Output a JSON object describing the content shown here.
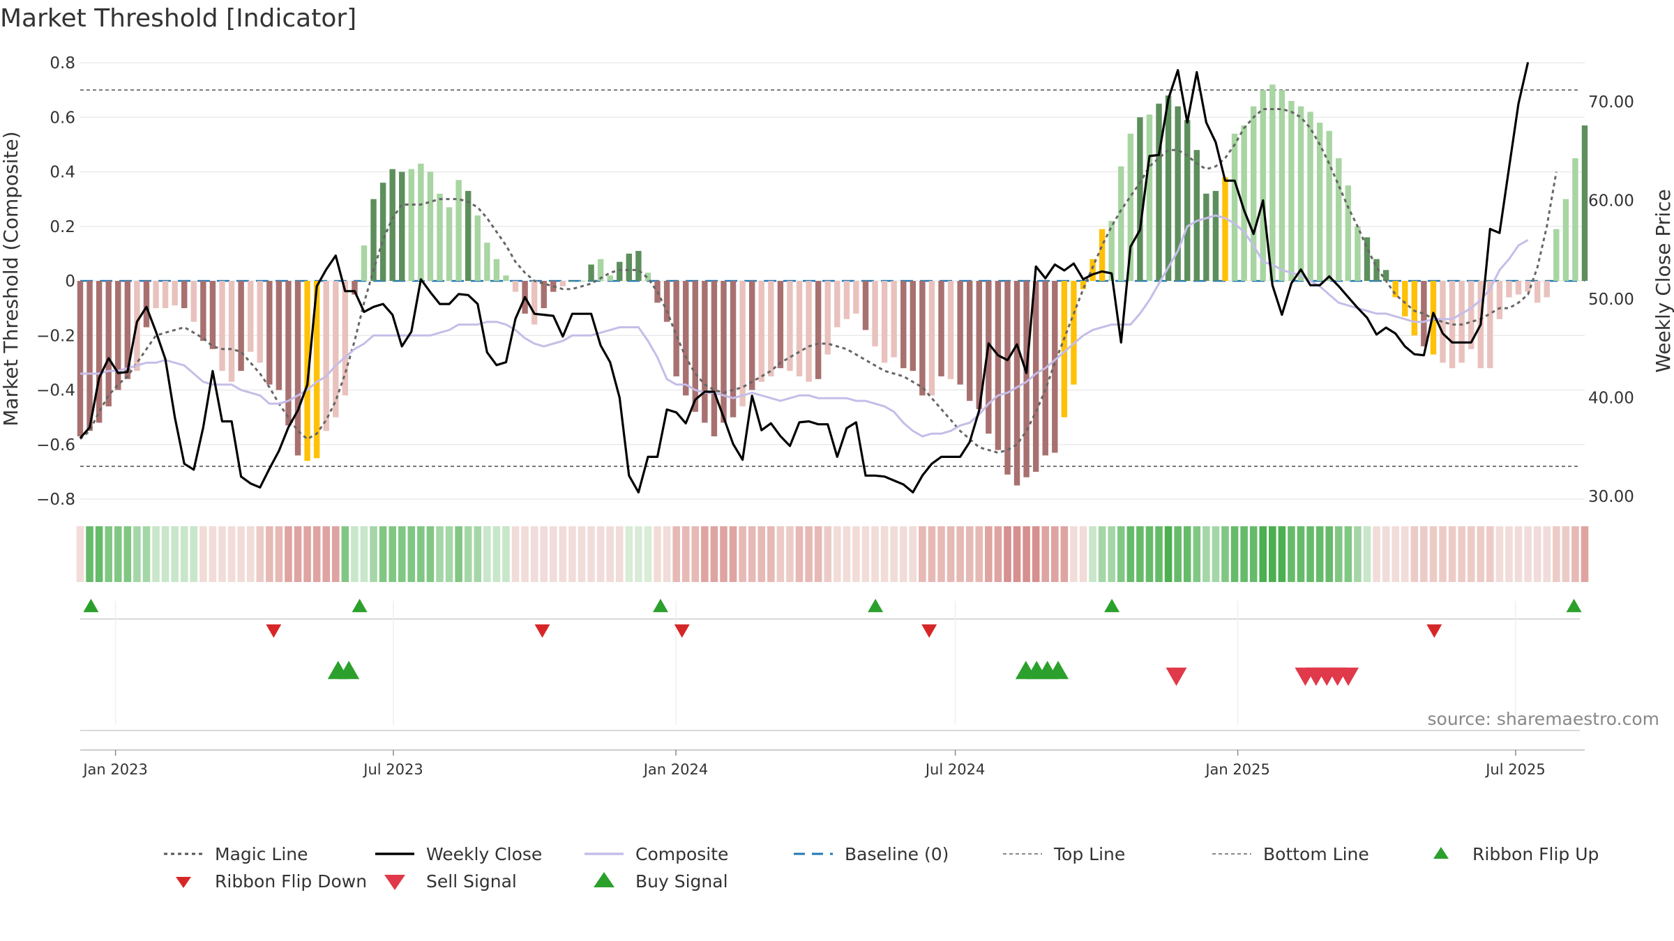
{
  "title": "Market Threshold [Indicator]",
  "source": "source: sharemaestro.com",
  "colors": {
    "green_dark": "#5d8f5d",
    "green_light": "#a8d5a2",
    "red_dark": "#a87170",
    "red_light": "#e9c2bd",
    "gold": "#ffc107",
    "close": "#000000",
    "composite": "#c5bde8",
    "magic": "#666666",
    "baseline": "#1f77b4",
    "buy": "#2ca02c",
    "sell": "#d62728"
  },
  "chart_data": {
    "type": "bar",
    "title": "Market Threshold [Indicator]",
    "ylabel": "Market Threshold (Composite)",
    "ylabel_right": "Weekly Close Price",
    "ylim": [
      -0.8,
      0.8
    ],
    "ylim_right": [
      30,
      72
    ],
    "yticks": [
      {
        "value": 0.8,
        "label": "0.8"
      },
      {
        "value": 0.6,
        "label": "0.6"
      },
      {
        "value": 0.4,
        "label": "0.4"
      },
      {
        "value": 0.2,
        "label": "0.2"
      },
      {
        "value": 0,
        "label": "0"
      },
      {
        "value": -0.2,
        "label": "−0.2"
      },
      {
        "value": -0.4,
        "label": "−0.4"
      },
      {
        "value": -0.6,
        "label": "−0.6"
      },
      {
        "value": -0.8,
        "label": "−0.8"
      }
    ],
    "yticks_right": [
      {
        "value": 70,
        "label": "70.00"
      },
      {
        "value": 60,
        "label": "60.00"
      },
      {
        "value": 50,
        "label": "50.00"
      },
      {
        "value": 40,
        "label": "40.00"
      },
      {
        "value": 30,
        "label": "30.00"
      }
    ],
    "x_start": "2022-12-09",
    "x_end": "2025-08-15",
    "xticks": [
      {
        "date": "2023-01-01",
        "label": "Jan 2023"
      },
      {
        "date": "2023-07-01",
        "label": "Jul 2023"
      },
      {
        "date": "2024-01-01",
        "label": "Jan 2024"
      },
      {
        "date": "2024-07-01",
        "label": "Jul 2024"
      },
      {
        "date": "2025-01-01",
        "label": "Jan 2025"
      },
      {
        "date": "2025-07-01",
        "label": "Jul 2025"
      }
    ],
    "top_line": 0.7,
    "bottom_line": -0.68,
    "baseline": 0,
    "bars": [
      -0.57,
      -0.55,
      -0.52,
      -0.46,
      -0.4,
      -0.36,
      -0.33,
      -0.17,
      -0.1,
      -0.1,
      -0.09,
      -0.1,
      -0.15,
      -0.22,
      -0.25,
      -0.33,
      -0.37,
      -0.33,
      -0.26,
      -0.3,
      -0.38,
      -0.4,
      -0.53,
      -0.64,
      -0.66,
      -0.65,
      -0.55,
      -0.5,
      -0.42,
      -0.05,
      0.13,
      0.3,
      0.36,
      0.41,
      0.4,
      0.41,
      0.43,
      0.4,
      0.32,
      0.27,
      0.37,
      0.33,
      0.24,
      0.14,
      0.08,
      0.02,
      -0.04,
      -0.12,
      -0.16,
      -0.1,
      -0.04,
      -0.02,
      0.0,
      0.0,
      0.06,
      0.08,
      0.02,
      0.07,
      0.1,
      0.11,
      0.03,
      -0.08,
      -0.15,
      -0.35,
      -0.42,
      -0.48,
      -0.52,
      -0.57,
      -0.52,
      -0.5,
      -0.46,
      -0.4,
      -0.37,
      -0.35,
      -0.32,
      -0.33,
      -0.35,
      -0.37,
      -0.36,
      -0.27,
      -0.17,
      -0.14,
      -0.12,
      -0.18,
      -0.24,
      -0.3,
      -0.28,
      -0.32,
      -0.33,
      -0.42,
      -0.42,
      -0.35,
      -0.36,
      -0.38,
      -0.44,
      -0.47,
      -0.56,
      -0.62,
      -0.71,
      -0.75,
      -0.72,
      -0.7,
      -0.64,
      -0.63,
      -0.5,
      -0.38,
      -0.03,
      0.08,
      0.19,
      0.22,
      0.42,
      0.54,
      0.6,
      0.61,
      0.65,
      0.68,
      0.64,
      0.59,
      0.48,
      0.32,
      0.33,
      0.38,
      0.54,
      0.57,
      0.64,
      0.7,
      0.72,
      0.7,
      0.66,
      0.64,
      0.62,
      0.58,
      0.55,
      0.45,
      0.35,
      0.2,
      0.16,
      0.08,
      0.04,
      -0.06,
      -0.13,
      -0.2,
      -0.24,
      -0.27,
      -0.3,
      -0.32,
      -0.3,
      -0.25,
      -0.32,
      -0.32,
      -0.14,
      -0.06,
      -0.05,
      -0.04,
      -0.08,
      -0.06,
      0.19,
      0.3,
      0.45,
      0.57
    ],
    "bar_shades": "DDDDDDLDLLLDLDDLLDLLDDDDGGLLLDLDDDDLLLLLLDLLLLLDLDDLDLDLLDDDLDDDDDDDDDLDLLDLLLDLLLLDLLLDDDLDLDDDDDDDDDDDGGGGGLLLDLDDDDDDDGLLLLLLLLLLLLLLDDDGGGDGLLLLLLLLLLLLLLLDLLDDDDDDDLLLLLLLDDLD",
    "close": [
      35.9,
      37,
      42,
      44,
      42.5,
      42.6,
      47.7,
      49.2,
      46.7,
      43.9,
      38,
      33.3,
      32.7,
      37,
      42.7,
      37.6,
      37.6,
      32,
      31.3,
      30.9,
      32.8,
      34.6,
      37,
      38.7,
      41.3,
      51.3,
      53,
      54.4,
      50.8,
      50.8,
      48.7,
      49.2,
      49.5,
      48.4,
      45.2,
      46.7,
      52,
      50.7,
      49.5,
      49.5,
      50.5,
      50.4,
      49.5,
      44.6,
      43.3,
      43.6,
      48,
      50.2,
      48.5,
      48.4,
      48.3,
      46.2,
      48.5,
      48.5,
      48.5,
      45.3,
      43.6,
      40,
      32.1,
      30.4,
      34,
      34,
      38.8,
      38.5,
      37.4,
      39.8,
      40.6,
      40.6,
      38,
      35.3,
      33.7,
      40.2,
      36.7,
      37.4,
      36.1,
      35.1,
      37.5,
      37.6,
      37.3,
      37.3,
      34,
      36.9,
      37.5,
      32.1,
      32.1,
      32,
      31.6,
      31.2,
      30.4,
      32.1,
      33.3,
      34,
      34,
      34,
      35.5,
      38.7,
      45.5,
      44.3,
      43.8,
      45.4,
      42.5,
      53.3,
      52.1,
      53.5,
      52.9,
      53.6,
      52,
      52.5,
      52.8,
      52.6,
      45.6,
      55.3,
      57,
      64.5,
      64.6,
      70.3,
      73.2,
      67.9,
      73,
      67.9,
      65.9,
      62,
      62,
      59,
      56.6,
      60,
      51.4,
      48.4,
      51.6,
      53,
      51.4,
      51.4,
      52.3,
      51.3,
      50.2,
      49.1,
      48.1,
      46.4,
      47.1,
      46.5,
      45.2,
      44.4,
      44.3,
      48.6,
      46.5,
      45.6,
      45.6,
      45.6,
      47.4,
      57.1,
      56.7,
      63.3,
      69.8,
      74
    ],
    "composite": [
      -0.34,
      -0.34,
      -0.34,
      -0.33,
      -0.33,
      -0.32,
      -0.31,
      -0.3,
      -0.3,
      -0.29,
      -0.3,
      -0.31,
      -0.34,
      -0.37,
      -0.38,
      -0.38,
      -0.38,
      -0.4,
      -0.41,
      -0.42,
      -0.45,
      -0.45,
      -0.44,
      -0.42,
      -0.4,
      -0.37,
      -0.35,
      -0.31,
      -0.28,
      -0.25,
      -0.23,
      -0.2,
      -0.2,
      -0.2,
      -0.2,
      -0.2,
      -0.2,
      -0.2,
      -0.19,
      -0.18,
      -0.16,
      -0.16,
      -0.16,
      -0.15,
      -0.15,
      -0.16,
      -0.18,
      -0.21,
      -0.23,
      -0.24,
      -0.23,
      -0.22,
      -0.2,
      -0.2,
      -0.2,
      -0.19,
      -0.18,
      -0.17,
      -0.17,
      -0.17,
      -0.22,
      -0.28,
      -0.36,
      -0.38,
      -0.38,
      -0.4,
      -0.41,
      -0.41,
      -0.42,
      -0.43,
      -0.42,
      -0.41,
      -0.42,
      -0.43,
      -0.44,
      -0.43,
      -0.42,
      -0.42,
      -0.43,
      -0.43,
      -0.43,
      -0.43,
      -0.44,
      -0.44,
      -0.45,
      -0.46,
      -0.48,
      -0.52,
      -0.55,
      -0.57,
      -0.56,
      -0.56,
      -0.55,
      -0.53,
      -0.52,
      -0.49,
      -0.45,
      -0.42,
      -0.41,
      -0.39,
      -0.37,
      -0.34,
      -0.32,
      -0.29,
      -0.26,
      -0.23,
      -0.2,
      -0.18,
      -0.17,
      -0.16,
      -0.16,
      -0.16,
      -0.12,
      -0.07,
      -0.01,
      0.05,
      0.11,
      0.2,
      0.22,
      0.23,
      0.24,
      0.23,
      0.21,
      0.18,
      0.13,
      0.07,
      0.06,
      0.04,
      0.03,
      0.02,
      0.0,
      -0.02,
      -0.05,
      -0.08,
      -0.09,
      -0.1,
      -0.11,
      -0.12,
      -0.12,
      -0.13,
      -0.14,
      -0.15,
      -0.15,
      -0.14,
      -0.14,
      -0.14,
      -0.12,
      -0.1,
      -0.07,
      -0.03,
      0.04,
      0.08,
      0.13,
      0.15
    ],
    "magic": [
      -0.58,
      -0.55,
      -0.48,
      -0.42,
      -0.38,
      -0.35,
      -0.3,
      -0.25,
      -0.2,
      -0.19,
      -0.18,
      -0.17,
      -0.19,
      -0.21,
      -0.24,
      -0.25,
      -0.25,
      -0.26,
      -0.3,
      -0.34,
      -0.39,
      -0.45,
      -0.5,
      -0.55,
      -0.58,
      -0.56,
      -0.51,
      -0.44,
      -0.34,
      -0.22,
      -0.08,
      0.04,
      0.15,
      0.23,
      0.28,
      0.28,
      0.28,
      0.29,
      0.3,
      0.3,
      0.3,
      0.29,
      0.27,
      0.23,
      0.18,
      0.13,
      0.07,
      0.03,
      0.0,
      -0.01,
      -0.02,
      -0.03,
      -0.03,
      -0.02,
      -0.01,
      0.01,
      0.03,
      0.04,
      0.04,
      0.04,
      0.01,
      -0.04,
      -0.11,
      -0.2,
      -0.28,
      -0.34,
      -0.38,
      -0.4,
      -0.41,
      -0.4,
      -0.39,
      -0.37,
      -0.35,
      -0.33,
      -0.3,
      -0.28,
      -0.26,
      -0.24,
      -0.23,
      -0.23,
      -0.24,
      -0.25,
      -0.27,
      -0.29,
      -0.31,
      -0.33,
      -0.34,
      -0.35,
      -0.37,
      -0.39,
      -0.43,
      -0.47,
      -0.51,
      -0.55,
      -0.58,
      -0.61,
      -0.62,
      -0.63,
      -0.62,
      -0.6,
      -0.55,
      -0.48,
      -0.4,
      -0.3,
      -0.21,
      -0.12,
      -0.03,
      0.05,
      0.13,
      0.2,
      0.26,
      0.31,
      0.36,
      0.42,
      0.45,
      0.48,
      0.48,
      0.46,
      0.43,
      0.41,
      0.42,
      0.45,
      0.5,
      0.56,
      0.6,
      0.63,
      0.63,
      0.63,
      0.62,
      0.6,
      0.56,
      0.5,
      0.43,
      0.35,
      0.27,
      0.2,
      0.12,
      0.05,
      0.0,
      -0.05,
      -0.08,
      -0.11,
      -0.12,
      -0.14,
      -0.15,
      -0.16,
      -0.16,
      -0.15,
      -0.14,
      -0.12,
      -0.1,
      -0.1,
      -0.08,
      -0.05,
      0.05,
      0.2,
      0.4
    ],
    "ribbon": "LGGGGGGGGGGGGLLLLLLRRRRRRRRRGGGGGGGGGGGGGGGGGGRRRRRRRRRRRRLLLLRRRRRRRRRRRRRRRRRRLLLLLLLLLRRRRRRRRRRRRRRRRLLGGGGGGGGGGGGGGGGGGGGGGGGGGGGGGRRRRRRRRRRRRRRRRRRRRRRRRRGGGG",
    "ribbon_flip_up": [
      "2022-12-16",
      "2023-06-09",
      "2023-12-22",
      "2024-05-10",
      "2024-10-11",
      "2025-08-08"
    ],
    "ribbon_flip_down": [
      "2023-04-14",
      "2023-10-06",
      "2024-01-05",
      "2024-06-14",
      "2025-05-09"
    ],
    "buy_signal": [
      "2023-05-26",
      "2023-06-02",
      "2024-08-16",
      "2024-08-23",
      "2024-08-30",
      "2024-09-06"
    ],
    "sell_signal": [
      "2024-11-22",
      "2025-02-14",
      "2025-02-21",
      "2025-02-28",
      "2025-03-07",
      "2025-03-14"
    ],
    "legend": [
      {
        "label": "Magic Line",
        "kind": "dotted"
      },
      {
        "label": "Weekly Close",
        "kind": "solid-black"
      },
      {
        "label": "Composite",
        "kind": "solid-lavender"
      },
      {
        "label": "Baseline (0)",
        "kind": "dashed-blue"
      },
      {
        "label": "Top Line",
        "kind": "dotted-light"
      },
      {
        "label": "Bottom Line",
        "kind": "dotted-light"
      },
      {
        "label": "Ribbon Flip Up",
        "kind": "tri-up-green"
      },
      {
        "label": "Ribbon Flip Down",
        "kind": "tri-down-red"
      },
      {
        "label": "Sell Signal",
        "kind": "tri-down-red-large"
      },
      {
        "label": "Buy Signal",
        "kind": "tri-up-green-large"
      }
    ],
    "legend_placement": "bottom",
    "grid": true
  }
}
